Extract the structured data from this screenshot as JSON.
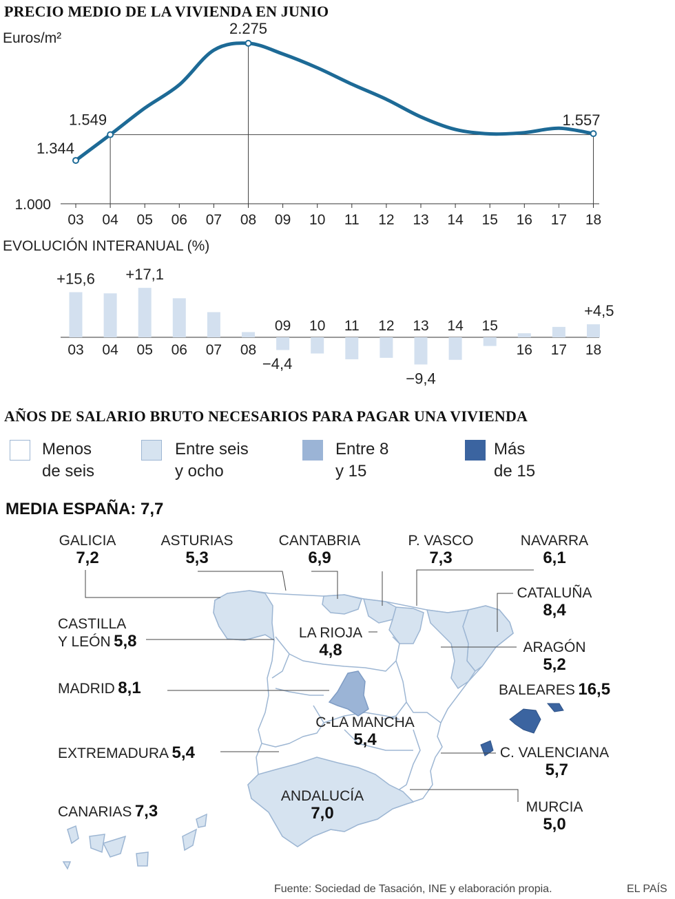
{
  "title1": "PRECIO MEDIO DE LA VIVIENDA EN JUNIO",
  "title2": "EVOLUCIÓN INTERANUAL (%)",
  "title3": "AÑOS DE SALARIO BRUTO NECESARIOS PARA PAGAR UNA VIVIENDA",
  "chart_data": [
    {
      "type": "line",
      "ylabel": "Euros/m²",
      "y_axis_label": "1.000",
      "ylim": [
        1000,
        2400
      ],
      "categories": [
        "03",
        "04",
        "05",
        "06",
        "07",
        "08",
        "09",
        "10",
        "11",
        "12",
        "13",
        "14",
        "15",
        "16",
        "17",
        "18"
      ],
      "values": [
        1344,
        1549,
        1760,
        1945,
        2220,
        2275,
        2190,
        2080,
        1950,
        1830,
        1690,
        1590,
        1555,
        1565,
        1600,
        1557
      ],
      "annotations": [
        {
          "index": 0,
          "label": "1.344"
        },
        {
          "index": 1,
          "label": "1.549"
        },
        {
          "index": 5,
          "label": "2.275"
        },
        {
          "index": 15,
          "label": "1.557"
        }
      ],
      "color": "#1d6a96"
    },
    {
      "type": "bar",
      "categories": [
        "03",
        "04",
        "05",
        "06",
        "07",
        "08",
        "09",
        "10",
        "11",
        "12",
        "13",
        "14",
        "15",
        "16",
        "17",
        "18"
      ],
      "values": [
        15.6,
        15.2,
        17.1,
        13.5,
        8.7,
        1.8,
        -4.4,
        -5.6,
        -7.6,
        -7.1,
        -9.4,
        -7.8,
        -3.0,
        1.4,
        3.6,
        4.5
      ],
      "annotations": [
        {
          "index": 0,
          "label": "+15,6"
        },
        {
          "index": 2,
          "label": "+17,1"
        },
        {
          "index": 6,
          "label": "−4,4"
        },
        {
          "index": 10,
          "label": "−9,4"
        },
        {
          "index": 15,
          "label": "+4,5"
        }
      ],
      "color": "#d3e0ef"
    }
  ],
  "legend": [
    {
      "label_line1": "Menos",
      "label_line2": "de seis",
      "color": "#ffffff"
    },
    {
      "label_line1": "Entre seis",
      "label_line2": "y ocho",
      "color": "#d6e3f0"
    },
    {
      "label_line1": "Entre 8",
      "label_line2": "y 15",
      "color": "#9bb4d6"
    },
    {
      "label_line1": "Más",
      "label_line2": "de 15",
      "color": "#3b64a0"
    }
  ],
  "mean": "MEDIA ESPAÑA: 7,7",
  "regions": {
    "galicia": {
      "name": "GALICIA",
      "value": "7,2"
    },
    "asturias": {
      "name": "ASTURIAS",
      "value": "5,3"
    },
    "cantabria": {
      "name": "CANTABRIA",
      "value": "6,9"
    },
    "pvasco": {
      "name": "P. VASCO",
      "value": "7,3"
    },
    "navarra": {
      "name": "NAVARRA",
      "value": "6,1"
    },
    "cataluna": {
      "name": "CATALUÑA",
      "value": "8,4"
    },
    "cyl": {
      "name1": "CASTILLA",
      "name2": "Y LEÓN",
      "value": "5,8"
    },
    "rioja": {
      "name": "LA RIOJA",
      "value": "4,8"
    },
    "aragon": {
      "name": "ARAGÓN",
      "value": "5,2"
    },
    "madrid": {
      "name": "MADRID",
      "value": "8,1"
    },
    "baleares": {
      "name": "BALEARES",
      "value": "16,5"
    },
    "clm": {
      "name": "C-LA MANCHA",
      "value": "5,4"
    },
    "extremadura": {
      "name": "EXTREMADURA",
      "value": "5,4"
    },
    "cvalenciana": {
      "name": "C. VALENCIANA",
      "value": "5,7"
    },
    "andalucia": {
      "name": "ANDALUCÍA",
      "value": "7,0"
    },
    "murcia": {
      "name": "MURCIA",
      "value": "5,0"
    },
    "canarias": {
      "name": "CANARIAS",
      "value": "7,3"
    }
  },
  "source": "Fuente: Sociedad de Tasación, INE y elaboración propia.",
  "brand": "EL PAÍS"
}
